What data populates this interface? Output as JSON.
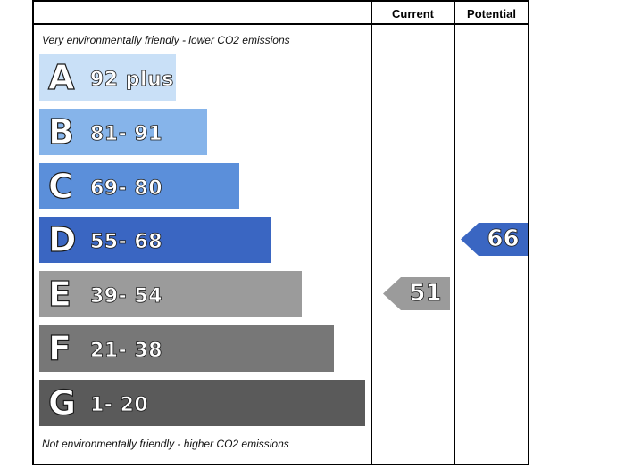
{
  "chart_data": {
    "type": "bar",
    "title": "",
    "columns": [
      "Current",
      "Potential"
    ],
    "top_note": "Very environmentally friendly - lower CO2 emissions",
    "bottom_note": "Not environmentally friendly - higher CO2 emissions",
    "bands": [
      {
        "letter": "A",
        "range": "92 plus",
        "color": "#c9e0f7"
      },
      {
        "letter": "B",
        "range": "81- 91",
        "color": "#86b4ea"
      },
      {
        "letter": "C",
        "range": "69- 80",
        "color": "#5b8fda"
      },
      {
        "letter": "D",
        "range": "55- 68",
        "color": "#3a66c2"
      },
      {
        "letter": "E",
        "range": "39- 54",
        "color": "#9b9b9b"
      },
      {
        "letter": "F",
        "range": "21- 38",
        "color": "#777777"
      },
      {
        "letter": "G",
        "range": "1- 20",
        "color": "#5a5a5a"
      }
    ],
    "current": {
      "value": 51,
      "band": "E",
      "color": "#9b9b9b"
    },
    "potential": {
      "value": 66,
      "band": "D",
      "color": "#3a66c2"
    }
  }
}
